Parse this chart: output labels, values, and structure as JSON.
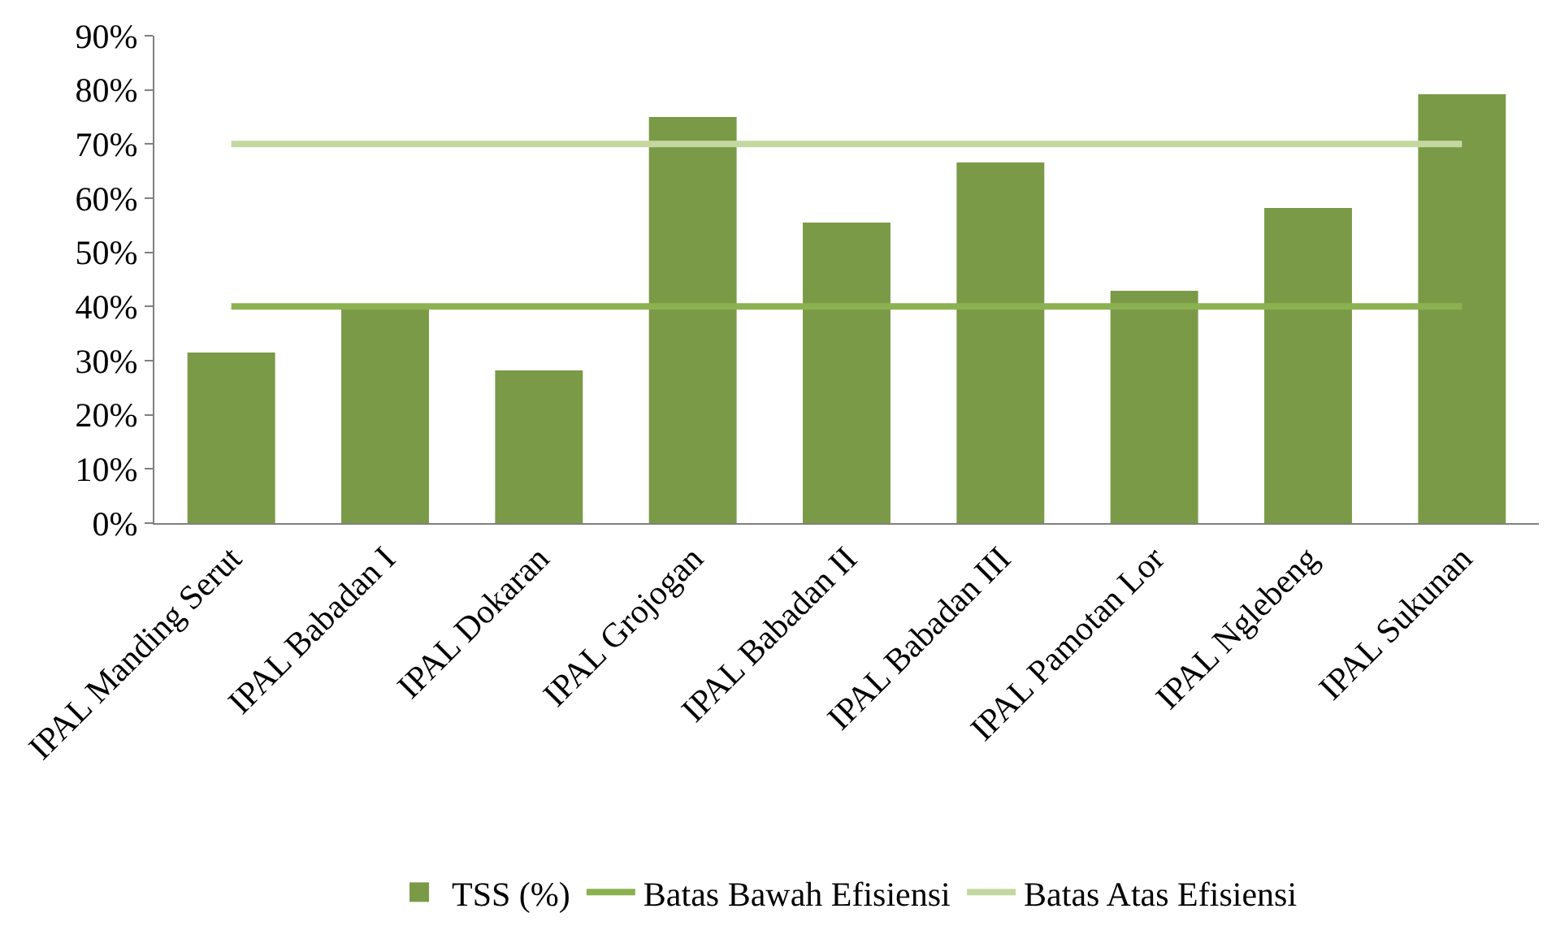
{
  "chart_data": {
    "type": "bar",
    "categories": [
      "IPAL Manding Serut",
      "IPAL Babadan I",
      "IPAL Dokaran",
      "IPAL Grojogan",
      "IPAL Babadan II",
      "IPAL Babadan III",
      "IPAL Pamotan Lor",
      "IPAL Nglebeng",
      "IPAL Sukunan"
    ],
    "series": [
      {
        "name": "TSS (%)",
        "color": "#7b9a47",
        "values": [
          31.5,
          40.5,
          28.2,
          75,
          55.5,
          66.6,
          42.9,
          58.2,
          79.2
        ]
      },
      {
        "name": "Batas Bawah Efisiensi",
        "type": "line",
        "color": "#8cb150",
        "values": [
          40,
          40,
          40,
          40,
          40,
          40,
          40,
          40,
          40
        ]
      },
      {
        "name": "Batas Atas Efisiensi",
        "type": "line",
        "color": "#c4d7a0",
        "values": [
          70,
          70,
          70,
          70,
          70,
          70,
          70,
          70,
          70
        ]
      }
    ],
    "ylim": [
      0,
      90
    ],
    "yticks": [
      {
        "value": 0,
        "label": "0%"
      },
      {
        "value": 10,
        "label": "10%"
      },
      {
        "value": 20,
        "label": "20%"
      },
      {
        "value": 30,
        "label": "30%"
      },
      {
        "value": 40,
        "label": "40%"
      },
      {
        "value": 50,
        "label": "50%"
      },
      {
        "value": 60,
        "label": "60%"
      },
      {
        "value": 70,
        "label": "70%"
      },
      {
        "value": 80,
        "label": "80%"
      },
      {
        "value": 90,
        "label": "90%"
      }
    ],
    "grid": false,
    "legend": "bottom",
    "marker": "none",
    "line_style": "solid"
  }
}
